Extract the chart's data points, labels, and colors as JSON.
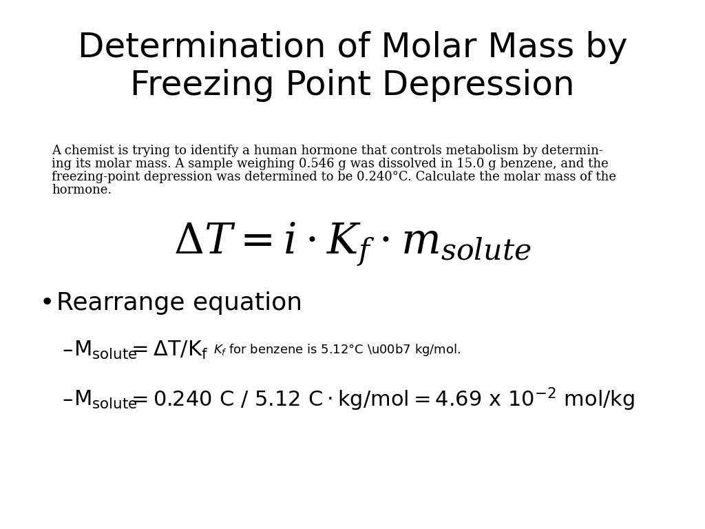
{
  "title_line1": "Determination of Molar Mass by",
  "title_line2": "Freezing Point Depression",
  "title_fontsize": 36,
  "bg_color": "#ffffff",
  "text_color": "#000000",
  "body_text_line1": "A chemist is trying to identify a human hormone that controls metabolism by determin-",
  "body_text_line2": "ing its molar mass. A sample weighing 0.546 g was dissolved in 15.0 g benzene, and the",
  "body_text_line3": "freezing-point depression was determined to be 0.240°C. Calculate the molar mass of the",
  "body_text_line4": "hormone.",
  "body_fontsize": 13,
  "formula_fontsize": 44,
  "bullet_fontsize": 26,
  "dash1_fontsize": 22,
  "dash2_fontsize": 22,
  "note_fontsize": 13
}
